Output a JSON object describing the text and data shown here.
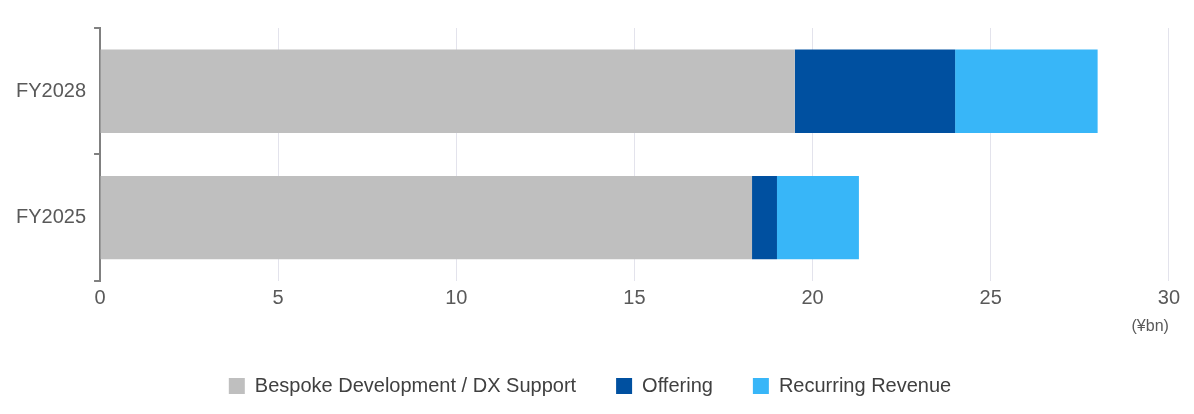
{
  "chart_data": {
    "type": "bar",
    "orientation": "horizontal",
    "stacked": true,
    "categories": [
      "FY2028",
      "FY2025"
    ],
    "series": [
      {
        "name": "Bespoke Development / DX Support",
        "color": "#bfbfbf",
        "values": [
          19.5,
          18.3
        ]
      },
      {
        "name": "Offering",
        "color": "#0050a0",
        "values": [
          4.5,
          0.7
        ]
      },
      {
        "name": "Recurring Revenue",
        "color": "#38b6f8",
        "values": [
          4.0,
          2.3
        ]
      }
    ],
    "xlabel": "(¥bn)",
    "xlim": [
      0,
      30
    ],
    "xticks": [
      0,
      5,
      10,
      15,
      20,
      25,
      30
    ],
    "grid": "x",
    "legend": "bottom"
  }
}
